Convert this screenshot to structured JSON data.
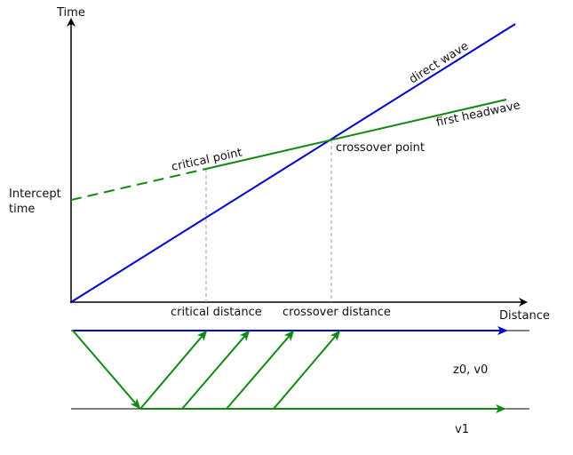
{
  "axes": {
    "y_label": "Time",
    "x_label": "Distance"
  },
  "graph_labels": {
    "intercept_time": [
      "Intercept",
      "time"
    ],
    "critical_point": "critical point",
    "crossover_point": "crossover point",
    "direct_wave": "direct wave",
    "first_headwave": "first headwave",
    "critical_distance": "critical distance",
    "crossover_distance": "crossover distance"
  },
  "layers": {
    "upper": "z0, v0",
    "lower": "v1"
  }
}
